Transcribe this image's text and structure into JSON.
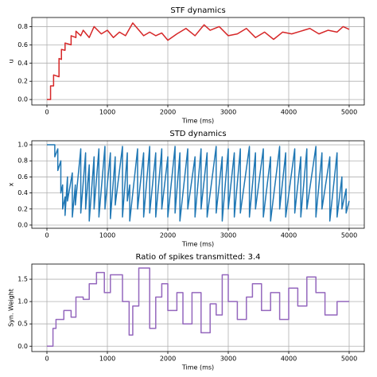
{
  "chart_data": [
    {
      "type": "line",
      "title": "STF dynamics",
      "x_label": "Time (ms)",
      "y_label": "u",
      "grid": true,
      "xlim": [
        -250,
        5250
      ],
      "ylim": [
        -0.06,
        0.9
      ],
      "xticks": [
        0,
        1000,
        2000,
        3000,
        4000,
        5000
      ],
      "yticks": [
        {
          "value": 0,
          "label": "0.0"
        },
        0.2,
        0.4,
        0.6,
        0.8
      ],
      "series": [
        {
          "name": "u",
          "color": "#d62728",
          "x": [
            0,
            60,
            60,
            110,
            110,
            200,
            200,
            240,
            240,
            300,
            300,
            400,
            400,
            480,
            480,
            560,
            600,
            700,
            780,
            900,
            1000,
            1100,
            1200,
            1300,
            1420,
            1600,
            1700,
            1800,
            1900,
            2000,
            2150,
            2300,
            2450,
            2600,
            2700,
            2850,
            3000,
            3150,
            3300,
            3450,
            3600,
            3750,
            3900,
            4050,
            4200,
            4350,
            4500,
            4650,
            4800,
            4900,
            5000
          ],
          "values": [
            0,
            0,
            0.15,
            0.15,
            0.27,
            0.25,
            0.45,
            0.44,
            0.55,
            0.54,
            0.62,
            0.6,
            0.7,
            0.68,
            0.75,
            0.7,
            0.76,
            0.68,
            0.8,
            0.72,
            0.76,
            0.68,
            0.74,
            0.7,
            0.84,
            0.7,
            0.74,
            0.7,
            0.73,
            0.65,
            0.72,
            0.78,
            0.7,
            0.82,
            0.76,
            0.8,
            0.7,
            0.72,
            0.78,
            0.68,
            0.74,
            0.66,
            0.74,
            0.72,
            0.75,
            0.78,
            0.72,
            0.76,
            0.74,
            0.8,
            0.77
          ]
        }
      ]
    },
    {
      "type": "line",
      "title": "STD dynamics",
      "x_label": "Time (ms)",
      "y_label": "x",
      "grid": true,
      "xlim": [
        -250,
        5250
      ],
      "ylim": [
        -0.04,
        1.05
      ],
      "xticks": [
        0,
        1000,
        2000,
        3000,
        4000,
        5000
      ],
      "yticks": [
        {
          "value": 0,
          "label": "0.0"
        },
        0.2,
        0.4,
        0.6,
        0.8,
        {
          "value": 1,
          "label": "1.0"
        }
      ],
      "series": [
        {
          "name": "x",
          "color": "#1f77b4",
          "x": [
            0,
            130,
            130,
            180,
            180,
            230,
            230,
            260,
            260,
            300,
            300,
            340,
            340,
            420,
            420,
            470,
            470,
            560,
            560,
            640,
            640,
            700,
            700,
            780,
            780,
            860,
            860,
            960,
            960,
            1050,
            1050,
            1130,
            1130,
            1250,
            1250,
            1330,
            1330,
            1370,
            1370,
            1500,
            1500,
            1600,
            1600,
            1700,
            1700,
            1800,
            1800,
            1900,
            1900,
            2000,
            2000,
            2120,
            2120,
            2200,
            2200,
            2330,
            2330,
            2450,
            2450,
            2550,
            2550,
            2650,
            2650,
            2800,
            2800,
            2900,
            2900,
            3000,
            3000,
            3100,
            3100,
            3200,
            3200,
            3350,
            3350,
            3450,
            3450,
            3580,
            3580,
            3700,
            3700,
            3850,
            3850,
            3950,
            3950,
            4100,
            4100,
            4200,
            4200,
            4300,
            4300,
            4450,
            4450,
            4550,
            4550,
            4680,
            4680,
            4800,
            4800,
            4880,
            4880,
            4950,
            4950,
            5000
          ],
          "values": [
            1.0,
            1.0,
            0.85,
            0.95,
            0.68,
            0.8,
            0.4,
            0.5,
            0.2,
            0.35,
            0.12,
            0.6,
            0.3,
            0.65,
            0.1,
            0.5,
            0.25,
            0.95,
            0.15,
            0.9,
            0.2,
            0.75,
            0.05,
            0.85,
            0.2,
            0.95,
            0.1,
            0.98,
            0.2,
            0.9,
            0.08,
            0.85,
            0.25,
            0.98,
            0.1,
            0.9,
            0.3,
            0.5,
            0.05,
            0.95,
            0.2,
            0.9,
            0.1,
            0.98,
            0.15,
            0.9,
            0.1,
            0.95,
            0.2,
            0.85,
            0.1,
            0.98,
            0.15,
            0.9,
            0.05,
            0.95,
            0.2,
            0.85,
            0.1,
            0.95,
            0.2,
            0.9,
            0.1,
            0.98,
            0.15,
            0.85,
            0.05,
            0.95,
            0.2,
            0.9,
            0.1,
            0.95,
            0.15,
            0.98,
            0.1,
            0.9,
            0.2,
            0.95,
            0.1,
            0.85,
            0.05,
            0.98,
            0.2,
            0.9,
            0.1,
            0.95,
            0.15,
            0.85,
            0.1,
            0.95,
            0.2,
            0.98,
            0.1,
            0.9,
            0.2,
            0.85,
            0.05,
            0.9,
            0.1,
            0.6,
            0.2,
            0.45,
            0.15,
            0.3
          ]
        }
      ]
    },
    {
      "type": "line",
      "title": "Ratio of spikes transmitted: 3.4",
      "x_label": "Time (ms)",
      "y_label": "Syn. Weight",
      "grid": true,
      "xlim": [
        -250,
        5250
      ],
      "ylim": [
        -0.12,
        1.84
      ],
      "xticks": [
        0,
        1000,
        2000,
        3000,
        4000,
        5000
      ],
      "yticks": [
        {
          "value": 0,
          "label": "0.0"
        },
        0.5,
        {
          "value": 1,
          "label": "1.0"
        },
        1.5
      ],
      "series": [
        {
          "name": "Syn. Weight",
          "color": "#9467bd",
          "x": [
            0,
            100,
            100,
            150,
            150,
            280,
            280,
            400,
            400,
            480,
            480,
            600,
            600,
            700,
            700,
            820,
            820,
            950,
            950,
            1050,
            1050,
            1250,
            1250,
            1360,
            1360,
            1420,
            1420,
            1520,
            1520,
            1700,
            1700,
            1800,
            1800,
            1900,
            1900,
            2000,
            2000,
            2150,
            2150,
            2250,
            2250,
            2400,
            2400,
            2550,
            2550,
            2700,
            2700,
            2800,
            2800,
            2900,
            2900,
            3000,
            3000,
            3150,
            3150,
            3300,
            3300,
            3400,
            3400,
            3550,
            3550,
            3700,
            3700,
            3850,
            3850,
            4000,
            4000,
            4150,
            4150,
            4300,
            4300,
            4450,
            4450,
            4600,
            4600,
            4800,
            4800,
            5000
          ],
          "values": [
            0,
            0,
            0.4,
            0.4,
            0.6,
            0.6,
            0.8,
            0.8,
            0.65,
            0.65,
            1.1,
            1.1,
            1.05,
            1.05,
            1.4,
            1.4,
            1.65,
            1.65,
            1.2,
            1.2,
            1.6,
            1.6,
            1.0,
            1.0,
            0.25,
            0.25,
            0.9,
            0.9,
            1.75,
            1.75,
            0.4,
            0.4,
            1.1,
            1.1,
            1.4,
            1.4,
            0.8,
            0.8,
            1.2,
            1.2,
            0.5,
            0.5,
            1.2,
            1.2,
            0.3,
            0.3,
            0.95,
            0.95,
            0.7,
            0.7,
            1.6,
            1.6,
            1.0,
            1.0,
            0.6,
            0.6,
            1.1,
            1.1,
            1.4,
            1.4,
            0.8,
            0.8,
            1.2,
            1.2,
            0.6,
            0.6,
            1.3,
            1.3,
            0.9,
            0.9,
            1.55,
            1.55,
            1.2,
            1.2,
            0.7,
            0.7,
            1.0,
            1.0
          ]
        }
      ]
    }
  ]
}
